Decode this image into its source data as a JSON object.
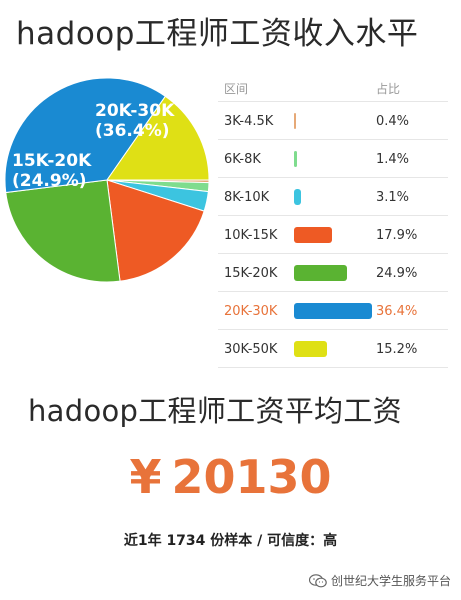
{
  "title": "hadoop工程师工资收入水平",
  "table_header": {
    "range": "区间",
    "ratio": "占比"
  },
  "chart_data": {
    "type": "pie",
    "title": "hadoop工程师工资收入水平",
    "categories": [
      "3K-4.5K",
      "6K-8K",
      "8K-10K",
      "10K-15K",
      "15K-20K",
      "20K-30K",
      "30K-50K"
    ],
    "values": [
      0.4,
      1.4,
      3.1,
      17.9,
      24.9,
      36.4,
      15.2
    ],
    "labels": [
      "0.4%",
      "1.4%",
      "3.1%",
      "17.9%",
      "24.9%",
      "36.4%",
      "15.2%"
    ],
    "colors": [
      "#e6a977",
      "#7fdc8e",
      "#3cc4e0",
      "#ee5a24",
      "#5ab332",
      "#1a8ad2",
      "#dfe015"
    ],
    "highlight": "20K-30K",
    "pie_labels": [
      {
        "category": "20K-30K",
        "name": "20K-30K",
        "percent": "(36.4%)"
      },
      {
        "category": "15K-20K",
        "name": "15K-20K",
        "percent": "(24.9%)"
      }
    ]
  },
  "average_title": "hadoop工程师工资平均工资",
  "average_salary": {
    "currency": "¥",
    "amount": "20130"
  },
  "sample_note": "近1年 1734 份样本 / 可信度：高",
  "watermark": {
    "text": "创世纪大学生服务平台",
    "icon": "wechat-icon"
  }
}
